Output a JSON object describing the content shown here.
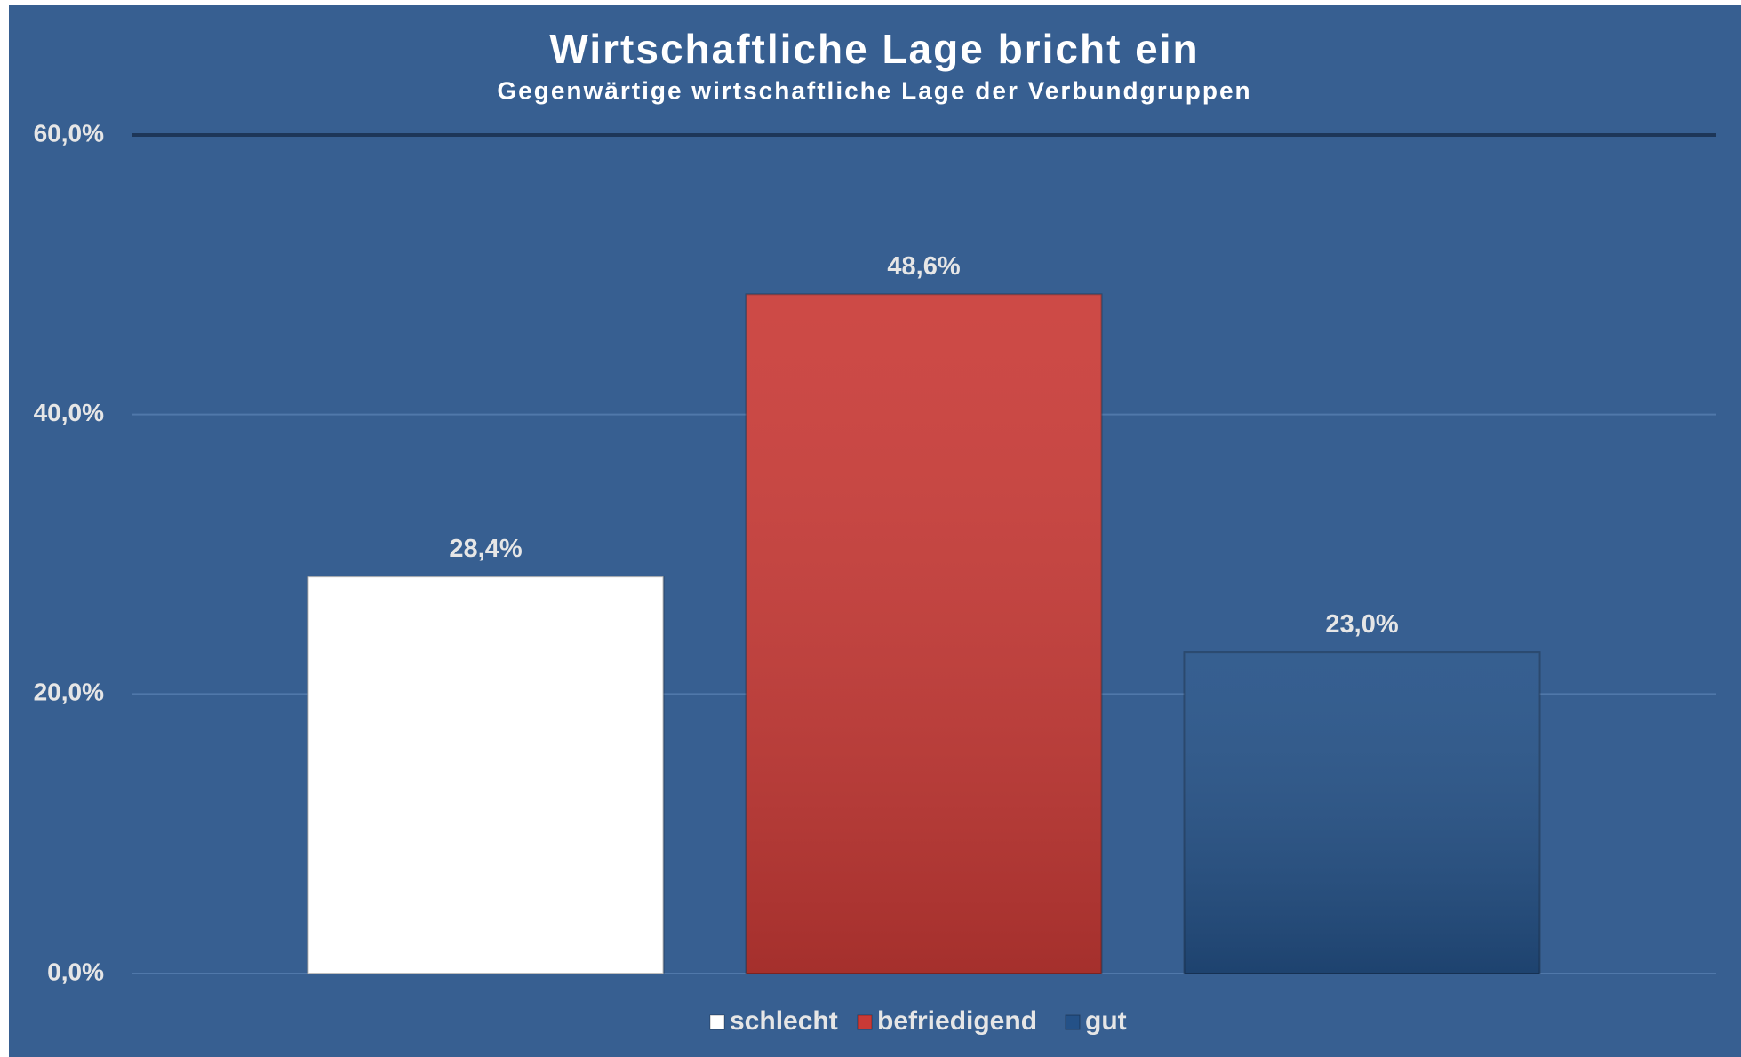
{
  "chart_data": {
    "type": "bar",
    "title": "Wirtschaftliche Lage bricht ein",
    "subtitle": "Gegenwärtige wirtschaftliche Lage der Verbundgruppen",
    "series": [
      {
        "name": "schlecht",
        "color": "#ffffff",
        "values": [
          28.4
        ],
        "value_labels": [
          "28,4%"
        ]
      },
      {
        "name": "befriedigend",
        "color": "#c93a36",
        "values": [
          48.6
        ],
        "value_labels": [
          "48,6%"
        ]
      },
      {
        "name": "gut",
        "color": "#245187",
        "values": [
          23.0
        ],
        "value_labels": [
          "23,0%"
        ]
      }
    ],
    "ylim": [
      0,
      60
    ],
    "yticks": [
      {
        "value": 0,
        "label": "0,0%"
      },
      {
        "value": 20,
        "label": "20,0%"
      },
      {
        "value": 40,
        "label": "40,0%"
      },
      {
        "value": 60,
        "label": "60,0%"
      }
    ],
    "grid": true,
    "legend": "bottom"
  }
}
